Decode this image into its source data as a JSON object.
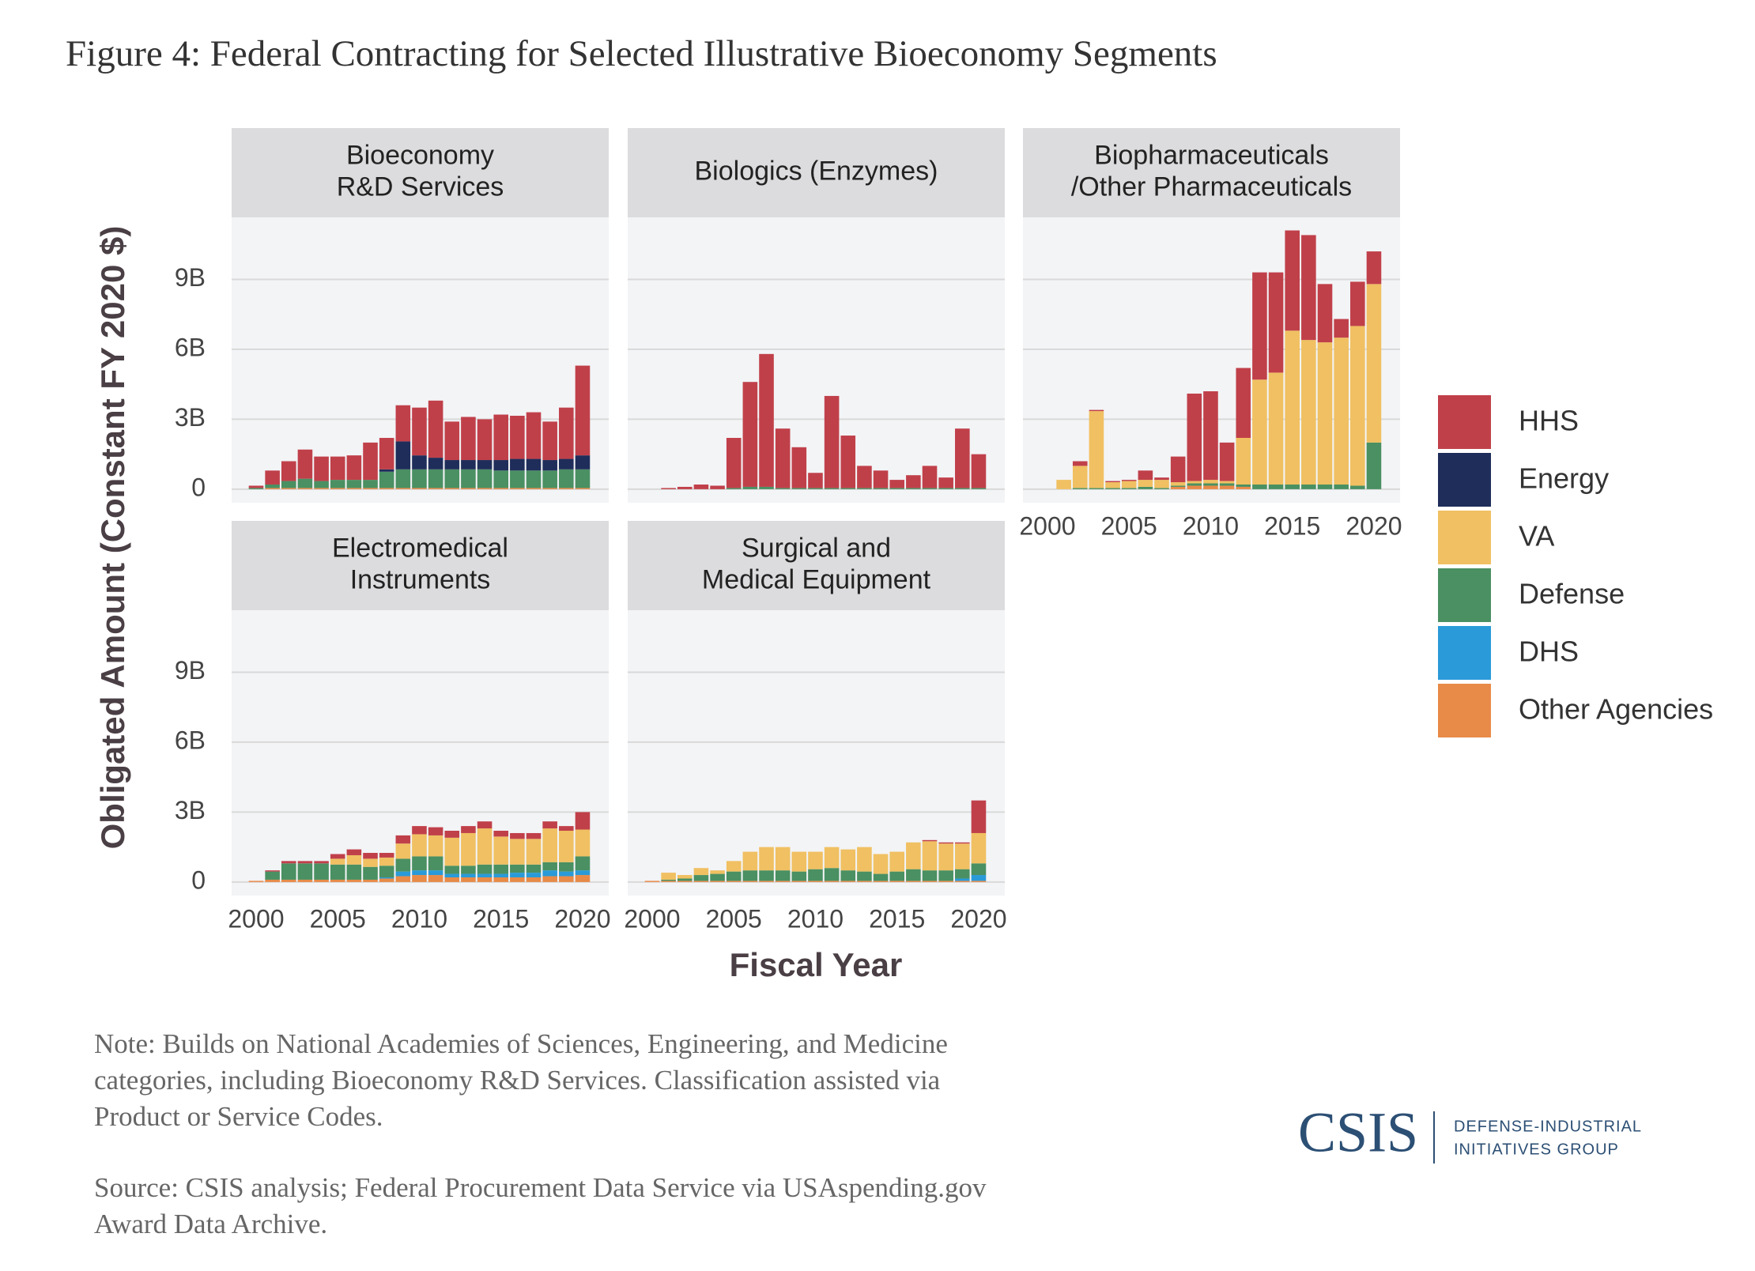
{
  "figure": {
    "title": "Figure 4: Federal Contracting for Selected Illustrative Bioeconomy Segments",
    "x_label": "Fiscal Year",
    "y_label": "Obligated Amount (Constant FY 2020 $)",
    "note": [
      "Note: Builds on National Academies of Sciences, Engineering, and Medicine",
      "categories, including Bioeconomy R&D Services. Classification assisted via",
      "Product or Service Codes."
    ],
    "source": [
      "Source: CSIS analysis; Federal Procurement Data Service via USAspending.gov",
      "Award Data Archive."
    ],
    "logo": {
      "name": "CSIS",
      "group": [
        "DEFENSE-INDUSTRIAL",
        "INITIATIVES GROUP"
      ]
    }
  },
  "chart_data": [
    {
      "type": "stacked_bar",
      "title": [
        "Bioeconomy",
        "R&D Services"
      ],
      "x": [
        2000,
        2001,
        2002,
        2003,
        2004,
        2005,
        2006,
        2007,
        2008,
        2009,
        2010,
        2011,
        2012,
        2013,
        2014,
        2015,
        2016,
        2017,
        2018,
        2019,
        2020
      ],
      "xlim": [
        1998.5,
        2021.6
      ],
      "ylim": [
        -0.58,
        11.66
      ],
      "yticks": [
        0,
        {
          "value": 3,
          "label": "3B"
        },
        {
          "value": 6,
          "label": "6B"
        },
        {
          "value": 9,
          "label": "9B"
        }
      ],
      "grid": true,
      "series": [
        {
          "name": "HHS",
          "color": "#c0404a",
          "values": [
            0.1,
            0.6,
            0.85,
            1.25,
            1.05,
            1.0,
            1.05,
            1.6,
            1.35,
            1.55,
            2.05,
            2.45,
            1.65,
            1.85,
            1.75,
            1.95,
            1.85,
            2.0,
            1.65,
            2.2,
            3.85
          ]
        },
        {
          "name": "Energy",
          "color": "#1f2d5a",
          "values": [
            0,
            0,
            0,
            0,
            0,
            0,
            0,
            0,
            0.1,
            1.2,
            0.6,
            0.5,
            0.4,
            0.4,
            0.4,
            0.45,
            0.5,
            0.5,
            0.45,
            0.45,
            0.6
          ]
        },
        {
          "name": "VA",
          "color": "#f0c062",
          "values": [
            0,
            0,
            0,
            0,
            0,
            0,
            0,
            0,
            0,
            0,
            0,
            0,
            0,
            0,
            0,
            0,
            0,
            0,
            0,
            0,
            0
          ]
        },
        {
          "name": "Defense",
          "color": "#4a9062",
          "values": [
            0.05,
            0.15,
            0.3,
            0.4,
            0.3,
            0.35,
            0.35,
            0.35,
            0.7,
            0.8,
            0.8,
            0.8,
            0.8,
            0.8,
            0.8,
            0.75,
            0.75,
            0.75,
            0.75,
            0.8,
            0.8
          ]
        },
        {
          "name": "DHS",
          "color": "#2a9ad8",
          "values": [
            0,
            0,
            0,
            0,
            0,
            0,
            0,
            0,
            0,
            0,
            0,
            0,
            0,
            0,
            0,
            0,
            0,
            0,
            0,
            0,
            0
          ]
        },
        {
          "name": "Other Agencies",
          "color": "#e88a48",
          "values": [
            0,
            0.05,
            0.05,
            0.05,
            0.05,
            0.05,
            0.05,
            0.05,
            0.05,
            0.05,
            0.05,
            0.05,
            0.05,
            0.05,
            0.05,
            0.05,
            0.05,
            0.05,
            0.05,
            0.05,
            0.05
          ]
        }
      ]
    },
    {
      "type": "stacked_bar",
      "title": [
        "Biologics (Enzymes)"
      ],
      "x": [
        2000,
        2001,
        2002,
        2003,
        2004,
        2005,
        2006,
        2007,
        2008,
        2009,
        2010,
        2011,
        2012,
        2013,
        2014,
        2015,
        2016,
        2017,
        2018,
        2019,
        2020
      ],
      "xlim": [
        1998.5,
        2021.6
      ],
      "ylim": [
        -0.58,
        11.66
      ],
      "yticks": [
        0,
        3,
        6,
        9
      ],
      "grid": true,
      "series": [
        {
          "name": "HHS",
          "color": "#c0404a",
          "values": [
            0,
            0.05,
            0.1,
            0.2,
            0.15,
            2.15,
            4.5,
            5.7,
            2.55,
            1.75,
            0.65,
            3.95,
            2.25,
            0.95,
            0.75,
            0.35,
            0.55,
            0.95,
            0.45,
            2.55,
            1.45
          ]
        },
        {
          "name": "Energy",
          "color": "#1f2d5a",
          "values": [
            0,
            0,
            0,
            0,
            0,
            0,
            0,
            0,
            0,
            0,
            0,
            0,
            0,
            0,
            0,
            0,
            0,
            0,
            0,
            0,
            0
          ]
        },
        {
          "name": "VA",
          "color": "#f0c062",
          "values": [
            0,
            0,
            0,
            0,
            0,
            0,
            0,
            0,
            0,
            0,
            0,
            0,
            0,
            0,
            0,
            0,
            0,
            0,
            0,
            0,
            0
          ]
        },
        {
          "name": "Defense",
          "color": "#4a9062",
          "values": [
            0,
            0,
            0,
            0,
            0,
            0.05,
            0.1,
            0.1,
            0.05,
            0.05,
            0.05,
            0.05,
            0.05,
            0.05,
            0.05,
            0.05,
            0.05,
            0.05,
            0.05,
            0.05,
            0.05
          ]
        },
        {
          "name": "DHS",
          "color": "#2a9ad8",
          "values": [
            0,
            0,
            0,
            0,
            0,
            0,
            0,
            0,
            0,
            0,
            0,
            0,
            0,
            0,
            0,
            0,
            0,
            0,
            0,
            0,
            0
          ]
        },
        {
          "name": "Other Agencies",
          "color": "#e88a48",
          "values": [
            0,
            0,
            0,
            0,
            0,
            0,
            0,
            0,
            0,
            0,
            0,
            0,
            0,
            0,
            0,
            0,
            0,
            0,
            0,
            0,
            0
          ]
        }
      ]
    },
    {
      "type": "stacked_bar",
      "title": [
        "Biopharmaceuticals",
        "/Other Pharmaceuticals"
      ],
      "x": [
        2000,
        2001,
        2002,
        2003,
        2004,
        2005,
        2006,
        2007,
        2008,
        2009,
        2010,
        2011,
        2012,
        2013,
        2014,
        2015,
        2016,
        2017,
        2018,
        2019,
        2020
      ],
      "xlim": [
        1998.5,
        2021.6
      ],
      "xticks": [
        2000,
        2005,
        2010,
        2015,
        2020
      ],
      "ylim": [
        -0.58,
        11.66
      ],
      "yticks": [
        0,
        3,
        6,
        9
      ],
      "grid": true,
      "series": [
        {
          "name": "HHS",
          "color": "#c0404a",
          "values": [
            0,
            0,
            0.2,
            0.05,
            0.05,
            0.05,
            0.4,
            0.1,
            1.1,
            3.75,
            3.8,
            1.65,
            3.0,
            4.6,
            4.3,
            4.3,
            4.5,
            2.5,
            0.8,
            1.9,
            1.4
          ]
        },
        {
          "name": "Energy",
          "color": "#1f2d5a",
          "values": [
            0,
            0,
            0,
            0,
            0,
            0,
            0,
            0,
            0,
            0,
            0,
            0,
            0,
            0,
            0,
            0,
            0,
            0,
            0,
            0,
            0
          ]
        },
        {
          "name": "VA",
          "color": "#f0c062",
          "values": [
            0,
            0.4,
            0.95,
            3.3,
            0.25,
            0.3,
            0.3,
            0.35,
            0.15,
            0.1,
            0.15,
            0.1,
            2.0,
            4.5,
            4.8,
            6.6,
            6.2,
            6.1,
            6.3,
            6.85,
            6.8
          ]
        },
        {
          "name": "Defense",
          "color": "#4a9062",
          "values": [
            0,
            0,
            0.05,
            0.05,
            0.05,
            0.05,
            0.1,
            0.05,
            0.05,
            0.1,
            0.1,
            0.1,
            0.1,
            0.2,
            0.2,
            0.2,
            0.2,
            0.2,
            0.2,
            0.15,
            2.0
          ]
        },
        {
          "name": "DHS",
          "color": "#2a9ad8",
          "values": [
            0,
            0,
            0,
            0,
            0,
            0,
            0,
            0,
            0,
            0,
            0,
            0,
            0,
            0,
            0,
            0,
            0,
            0,
            0,
            0,
            0
          ]
        },
        {
          "name": "Other Agencies",
          "color": "#e88a48",
          "values": [
            0,
            0,
            0,
            0,
            0,
            0,
            0,
            0,
            0.1,
            0.15,
            0.15,
            0.15,
            0.1,
            0,
            0,
            0,
            0,
            0,
            0,
            0,
            0
          ]
        }
      ]
    },
    {
      "type": "stacked_bar",
      "title": [
        "Electromedical",
        "Instruments"
      ],
      "x": [
        2000,
        2001,
        2002,
        2003,
        2004,
        2005,
        2006,
        2007,
        2008,
        2009,
        2010,
        2011,
        2012,
        2013,
        2014,
        2015,
        2016,
        2017,
        2018,
        2019,
        2020
      ],
      "xlim": [
        1998.5,
        2021.6
      ],
      "xticks": [
        2000,
        2005,
        2010,
        2015,
        2020
      ],
      "ylim": [
        -0.58,
        11.66
      ],
      "yticks": [
        0,
        {
          "value": 3,
          "label": "3B"
        },
        {
          "value": 6,
          "label": "6B"
        },
        {
          "value": 9,
          "label": "9B"
        }
      ],
      "grid": true,
      "series": [
        {
          "name": "HHS",
          "color": "#c0404a",
          "values": [
            0,
            0.05,
            0.1,
            0.1,
            0.1,
            0.2,
            0.25,
            0.25,
            0.2,
            0.35,
            0.35,
            0.35,
            0.3,
            0.3,
            0.3,
            0.25,
            0.25,
            0.25,
            0.3,
            0.2,
            0.75
          ]
        },
        {
          "name": "Energy",
          "color": "#1f2d5a",
          "values": [
            0,
            0,
            0,
            0,
            0,
            0,
            0,
            0,
            0,
            0,
            0,
            0,
            0,
            0,
            0,
            0,
            0,
            0,
            0,
            0,
            0
          ]
        },
        {
          "name": "VA",
          "color": "#f0c062",
          "values": [
            0,
            0,
            0,
            0,
            0,
            0.25,
            0.4,
            0.35,
            0.35,
            0.65,
            0.95,
            0.9,
            1.2,
            1.4,
            1.55,
            1.2,
            1.1,
            1.1,
            1.45,
            1.35,
            1.15
          ]
        },
        {
          "name": "Defense",
          "color": "#4a9062",
          "values": [
            0,
            0.35,
            0.7,
            0.7,
            0.7,
            0.65,
            0.65,
            0.55,
            0.5,
            0.55,
            0.6,
            0.6,
            0.35,
            0.35,
            0.4,
            0.4,
            0.35,
            0.35,
            0.35,
            0.4,
            0.6
          ]
        },
        {
          "name": "DHS",
          "color": "#2a9ad8",
          "values": [
            0,
            0,
            0,
            0,
            0,
            0,
            0,
            0,
            0.05,
            0.2,
            0.2,
            0.2,
            0.15,
            0.15,
            0.15,
            0.15,
            0.2,
            0.2,
            0.25,
            0.2,
            0.2
          ]
        },
        {
          "name": "Other Agencies",
          "color": "#e88a48",
          "values": [
            0.05,
            0.1,
            0.1,
            0.1,
            0.1,
            0.1,
            0.1,
            0.1,
            0.15,
            0.25,
            0.3,
            0.3,
            0.2,
            0.2,
            0.2,
            0.2,
            0.2,
            0.2,
            0.25,
            0.25,
            0.3
          ]
        }
      ]
    },
    {
      "type": "stacked_bar",
      "title": [
        "Surgical and",
        "Medical Equipment"
      ],
      "x": [
        2000,
        2001,
        2002,
        2003,
        2004,
        2005,
        2006,
        2007,
        2008,
        2009,
        2010,
        2011,
        2012,
        2013,
        2014,
        2015,
        2016,
        2017,
        2018,
        2019,
        2020
      ],
      "xlim": [
        1998.5,
        2021.6
      ],
      "xticks": [
        2000,
        2005,
        2010,
        2015,
        2020
      ],
      "ylim": [
        -0.58,
        11.66
      ],
      "yticks": [
        0,
        3,
        6,
        9
      ],
      "grid": true,
      "series": [
        {
          "name": "HHS",
          "color": "#c0404a",
          "values": [
            0,
            0,
            0,
            0,
            0,
            0,
            0,
            0,
            0,
            0,
            0,
            0,
            0,
            0,
            0,
            0,
            0,
            0.05,
            0.05,
            0.05,
            1.4
          ]
        },
        {
          "name": "Energy",
          "color": "#1f2d5a",
          "values": [
            0,
            0,
            0,
            0,
            0,
            0,
            0,
            0,
            0,
            0,
            0,
            0,
            0,
            0,
            0,
            0,
            0,
            0,
            0,
            0,
            0
          ]
        },
        {
          "name": "VA",
          "color": "#f0c062",
          "values": [
            0,
            0.3,
            0.15,
            0.3,
            0.15,
            0.45,
            0.8,
            1.0,
            1.0,
            0.85,
            0.75,
            0.9,
            0.9,
            1.05,
            0.85,
            0.85,
            1.15,
            1.25,
            1.15,
            1.1,
            1.3
          ]
        },
        {
          "name": "Defense",
          "color": "#4a9062",
          "values": [
            0,
            0.05,
            0.1,
            0.25,
            0.3,
            0.4,
            0.45,
            0.45,
            0.45,
            0.4,
            0.5,
            0.55,
            0.45,
            0.4,
            0.3,
            0.4,
            0.5,
            0.45,
            0.45,
            0.4,
            0.5
          ]
        },
        {
          "name": "DHS",
          "color": "#2a9ad8",
          "values": [
            0,
            0,
            0,
            0,
            0,
            0,
            0,
            0,
            0,
            0,
            0,
            0,
            0,
            0,
            0,
            0,
            0,
            0,
            0,
            0.1,
            0.25
          ]
        },
        {
          "name": "Other Agencies",
          "color": "#e88a48",
          "values": [
            0.05,
            0.05,
            0.05,
            0.05,
            0.05,
            0.05,
            0.05,
            0.05,
            0.05,
            0.05,
            0.05,
            0.05,
            0.05,
            0.05,
            0.05,
            0.05,
            0.05,
            0.05,
            0.05,
            0.05,
            0.05
          ]
        }
      ]
    }
  ]
}
